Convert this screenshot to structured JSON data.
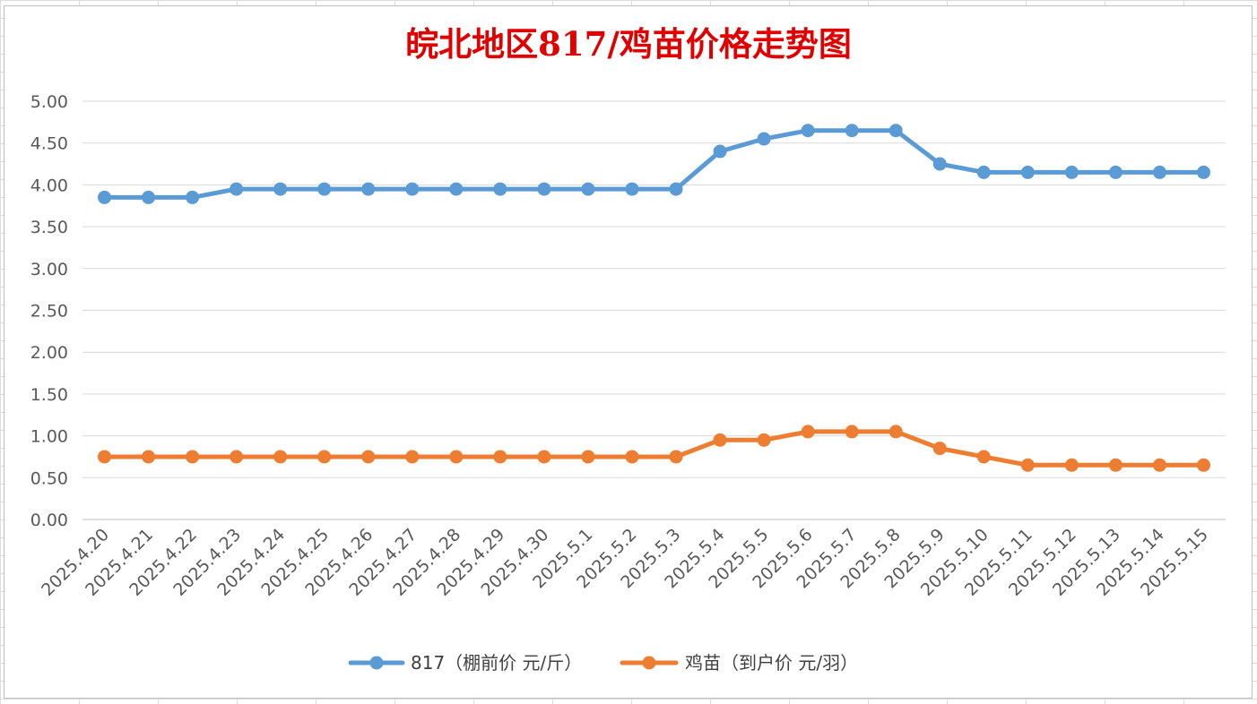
{
  "chart_data": {
    "type": "line",
    "title": "皖北地区817/鸡苗价格走势图",
    "title_color": "#e00000",
    "categories": [
      "2025.4.20",
      "2025.4.21",
      "2025.4.22",
      "2025.4.23",
      "2025.4.24",
      "2025.4.25",
      "2025.4.26",
      "2025.4.27",
      "2025.4.28",
      "2025.4.29",
      "2025.4.30",
      "2025.5.1",
      "2025.5.2",
      "2025.5.3",
      "2025.5.4",
      "2025.5.5",
      "2025.5.6",
      "2025.5.7",
      "2025.5.8",
      "2025.5.9",
      "2025.5.10",
      "2025.5.11",
      "2025.5.12",
      "2025.5.13",
      "2025.5.14",
      "2025.5.15"
    ],
    "series": [
      {
        "name": "817（棚前价 元/斤）",
        "color": "#5b9bd5",
        "values": [
          3.85,
          3.85,
          3.85,
          3.95,
          3.95,
          3.95,
          3.95,
          3.95,
          3.95,
          3.95,
          3.95,
          3.95,
          3.95,
          3.95,
          4.4,
          4.55,
          4.65,
          4.65,
          4.65,
          4.25,
          4.15,
          4.15,
          4.15,
          4.15,
          4.15,
          4.15
        ]
      },
      {
        "name": "鸡苗（到户价 元/羽）",
        "color": "#ed7d31",
        "values": [
          0.75,
          0.75,
          0.75,
          0.75,
          0.75,
          0.75,
          0.75,
          0.75,
          0.75,
          0.75,
          0.75,
          0.75,
          0.75,
          0.75,
          0.95,
          0.95,
          1.05,
          1.05,
          1.05,
          0.85,
          0.75,
          0.65,
          0.65,
          0.65,
          0.65,
          0.65
        ]
      }
    ],
    "ylim": [
      0,
      5
    ],
    "yticks": [
      "0.00",
      "0.50",
      "1.00",
      "1.50",
      "2.00",
      "2.50",
      "3.00",
      "3.50",
      "4.00",
      "4.50",
      "5.00"
    ],
    "grid": true,
    "legend": "bottom"
  }
}
